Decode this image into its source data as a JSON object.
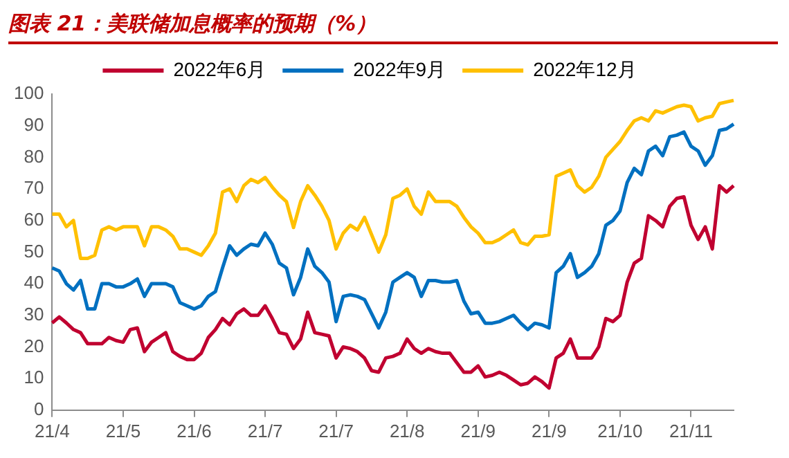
{
  "chart_data": {
    "type": "line",
    "title": "图表 21：美联储加息概率的预期（%）",
    "categories": [
      "21/4",
      null,
      null,
      null,
      null,
      null,
      null,
      null,
      null,
      null,
      "21/5",
      null,
      null,
      null,
      null,
      null,
      null,
      null,
      null,
      null,
      "21/6",
      null,
      null,
      null,
      null,
      null,
      null,
      null,
      null,
      null,
      "21/7",
      null,
      null,
      null,
      null,
      null,
      null,
      null,
      null,
      null,
      "21/7",
      null,
      null,
      null,
      null,
      null,
      null,
      null,
      null,
      null,
      "21/8",
      null,
      null,
      null,
      null,
      null,
      null,
      null,
      null,
      null,
      "21/9",
      null,
      null,
      null,
      null,
      null,
      null,
      null,
      null,
      null,
      "21/9",
      null,
      null,
      null,
      null,
      null,
      null,
      null,
      null,
      null,
      "21/10",
      null,
      null,
      null,
      null,
      null,
      null,
      null,
      null,
      null,
      "21/11",
      null,
      null,
      null,
      null,
      null,
      null
    ],
    "ylim": [
      0,
      100
    ],
    "yticks": [
      0,
      10,
      20,
      30,
      40,
      50,
      60,
      70,
      80,
      90,
      100
    ],
    "legend": "top",
    "marker": "none",
    "series": [
      {
        "name": "2022年6月",
        "color": "#c00030",
        "values": [
          27.6,
          29.5,
          27.6,
          25.5,
          24.5,
          21,
          21,
          21,
          23,
          22,
          21.5,
          25.5,
          26,
          18.5,
          21.5,
          23,
          24.5,
          18.5,
          17,
          16,
          16,
          18,
          23,
          25.5,
          29,
          27,
          30.5,
          32,
          30,
          30,
          33,
          29,
          24.5,
          24,
          19.5,
          22.5,
          31,
          24.5,
          24,
          23.5,
          16.5,
          20,
          19.5,
          18.5,
          16.5,
          12.5,
          12,
          16.5,
          17,
          18,
          22.5,
          19.5,
          18,
          19.5,
          18.5,
          18,
          18,
          15,
          12,
          12,
          14,
          10.5,
          11,
          12,
          11,
          9.5,
          8,
          8.5,
          10.5,
          9,
          7,
          16.5,
          18,
          22.5,
          16.5,
          16.5,
          16.5,
          20,
          29,
          28,
          30,
          40.5,
          46.5,
          48,
          61.5,
          60,
          58,
          64.5,
          67,
          67.5,
          58.5,
          54,
          58,
          51,
          71,
          69,
          71
        ]
      },
      {
        "name": "2022年9月",
        "color": "#0070c0",
        "values": [
          45,
          44,
          40,
          38,
          41,
          32,
          32,
          40,
          40,
          39,
          39,
          40,
          41.5,
          36,
          40,
          40,
          40,
          39,
          34,
          33,
          32,
          33,
          36,
          37.5,
          45,
          52,
          49,
          51,
          52.5,
          52,
          56,
          52.5,
          46.5,
          45,
          36.5,
          42,
          51,
          45.5,
          43.5,
          40.5,
          28,
          36,
          36.5,
          36,
          35,
          30.5,
          26,
          31,
          40.5,
          42,
          43.5,
          42,
          36,
          41,
          41,
          40.5,
          40.5,
          41,
          34.5,
          30.5,
          31,
          27.5,
          27.5,
          28,
          29,
          30,
          27.5,
          25.5,
          27.5,
          27,
          26,
          43.5,
          45.5,
          49.5,
          42,
          43.5,
          45.5,
          49.5,
          58.5,
          60,
          63,
          72,
          76.5,
          74.5,
          82,
          83.5,
          80.5,
          86.5,
          87,
          88,
          83.5,
          82,
          77.5,
          80.5,
          88.5,
          89,
          90.5
        ]
      },
      {
        "name": "2022年12月",
        "color": "#ffc000",
        "values": [
          62,
          62,
          58,
          60,
          48,
          48,
          49,
          57,
          58,
          57,
          58,
          58,
          58,
          52,
          58,
          58,
          57,
          55,
          51,
          51,
          50,
          49,
          52,
          56,
          69,
          70,
          66,
          71,
          73,
          72,
          73.6,
          70.6,
          68,
          66,
          57.8,
          66,
          71,
          68,
          64.5,
          60,
          51,
          56,
          58.5,
          57,
          61,
          55.5,
          50,
          55.5,
          67,
          68,
          70,
          64.5,
          62,
          69,
          66,
          66,
          66,
          64.5,
          61,
          58,
          56,
          53,
          53,
          54,
          55.5,
          57,
          53,
          52.3,
          55,
          55,
          55.5,
          74,
          75,
          76,
          71,
          69,
          70.5,
          74,
          80,
          82.5,
          85,
          88.5,
          91.5,
          92.5,
          91.5,
          94.7,
          94,
          95,
          96,
          96.5,
          96,
          91.5,
          92.5,
          93,
          97,
          97.5,
          98
        ]
      }
    ]
  }
}
